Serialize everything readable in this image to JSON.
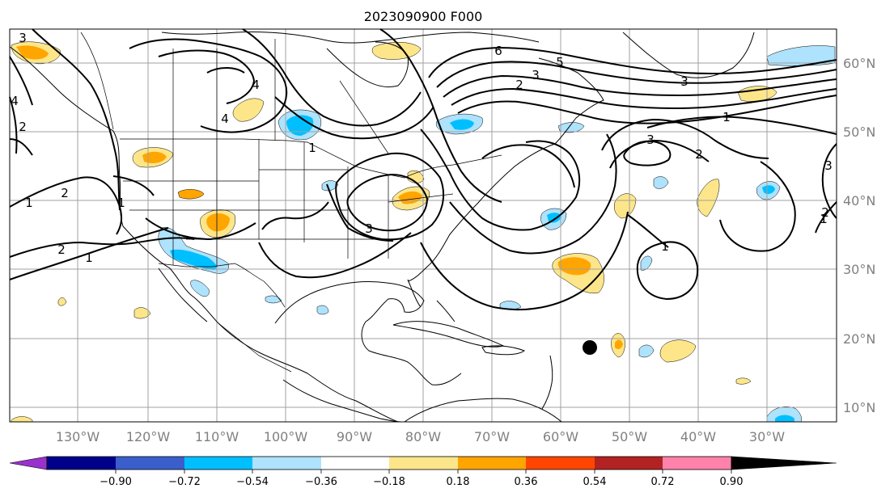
{
  "title": "2023090900 F000",
  "longitude_labels": [
    "130°W",
    "120°W",
    "110°W",
    "100°W",
    "90°W",
    "80°W",
    "70°W",
    "60°W",
    "50°W",
    "40°W",
    "30°W"
  ],
  "latitude_labels": [
    "60°N",
    "50°N",
    "40°N",
    "30°N",
    "20°N",
    "10°N"
  ],
  "colorbar": {
    "ticks": [
      "−0.90",
      "−0.72",
      "−0.54",
      "−0.36",
      "−0.18",
      "0.18",
      "0.36",
      "0.54",
      "0.72",
      "0.90"
    ],
    "colors": [
      "#9932cc",
      "#00008b",
      "#3a5fcd",
      "#00bfff",
      "#aee2fd",
      "#ffffff",
      "#fde68a",
      "#ffa500",
      "#ff4500",
      "#b22222",
      "#ff82ab"
    ]
  },
  "contour_labels": [
    "3",
    "4",
    "2",
    "1",
    "2",
    "1",
    "4",
    "4",
    "1",
    "3",
    "2",
    "1",
    "3",
    "5",
    "6",
    "2",
    "3",
    "1",
    "3",
    "2",
    "1",
    "1",
    "2",
    "3"
  ],
  "storm_marker": {
    "lon": -56,
    "lat": 18.7
  }
}
